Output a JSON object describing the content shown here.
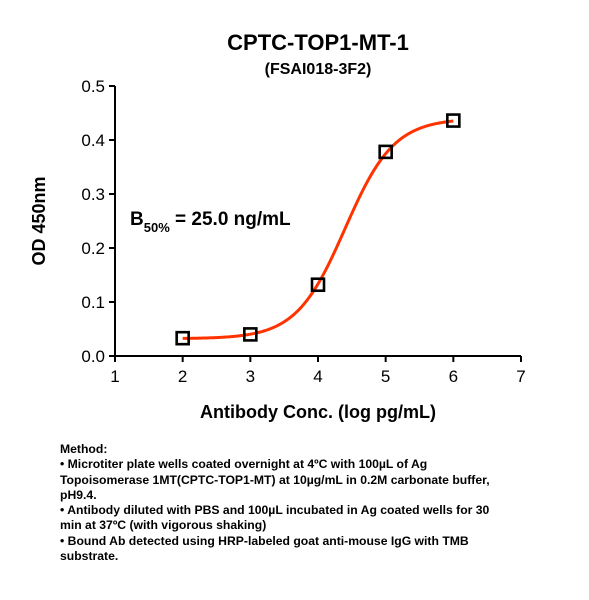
{
  "chart_data": {
    "type": "scatter",
    "title": "CPTC-TOP1-MT-1",
    "subtitle": "(FSAI018-3F2)",
    "xlabel": "Antibody Conc. (log pg/mL)",
    "ylabel": "OD 450nm",
    "xlim": [
      1,
      7
    ],
    "ylim": [
      0,
      0.5
    ],
    "xticks": [
      "1",
      "2",
      "3",
      "4",
      "5",
      "6",
      "7"
    ],
    "yticks": [
      "0.0",
      "0.1",
      "0.2",
      "0.3",
      "0.4",
      "0.5"
    ],
    "grid": false,
    "series": [
      {
        "marker": "square",
        "x": [
          2,
          3,
          4,
          5,
          6
        ],
        "y": [
          0.033,
          0.04,
          0.132,
          0.378,
          0.436
        ]
      }
    ],
    "fit_curve": {
      "color": "#ff3300",
      "model": "4PL",
      "bottom": 0.032,
      "top": 0.44,
      "log_ec50": 4.4,
      "hill": 1.2,
      "x_range": [
        2,
        6
      ]
    },
    "annotation": {
      "main": "B",
      "subscript": "50%",
      "rest": " = 25.0 ng/mL"
    }
  },
  "method": {
    "heading": "Method:",
    "lines": [
      "• Microtiter plate wells coated overnight at 4ºC  with 100µL of Ag",
      "Topoisomerase 1MT(CPTC-TOP1-MT) at 10µg/mL in 0.2M carbonate buffer,",
      "pH9.4.",
      "• Antibody diluted with PBS and 100µL incubated in Ag coated wells for 30",
      "min at 37ºC (with vigorous shaking)",
      "• Bound Ab detected using HRP-labeled goat anti-mouse IgG with TMB",
      "substrate."
    ]
  }
}
